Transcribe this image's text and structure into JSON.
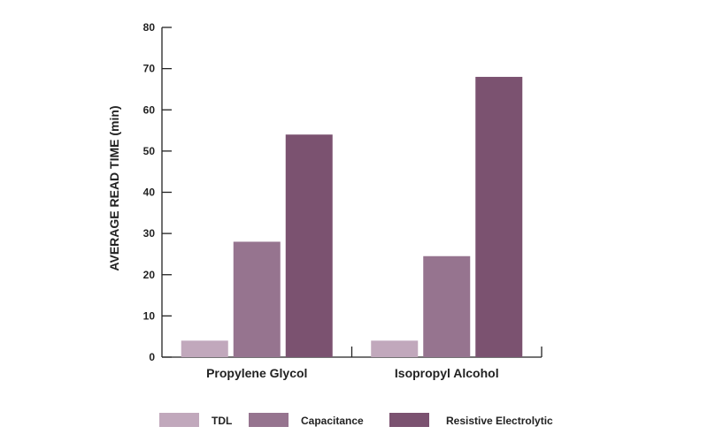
{
  "chart_data": {
    "type": "bar",
    "title": "",
    "xlabel": "",
    "ylabel": "AVERAGE READ TIME (min)",
    "ylim": [
      0,
      80
    ],
    "yticks": [
      0,
      10,
      20,
      30,
      40,
      50,
      60,
      70,
      80
    ],
    "grid": false,
    "legend_position": "bottom",
    "categories": [
      "Propylene Glycol",
      "Isopropyl Alcohol"
    ],
    "series": [
      {
        "name": "TDL",
        "color": "#c1a8bc",
        "values": [
          4,
          4
        ]
      },
      {
        "name": "Capacitance",
        "color": "#96748f",
        "values": [
          28,
          24.5
        ]
      },
      {
        "name": "Resistive Electrolytic",
        "color": "#7b5270",
        "values": [
          54,
          68
        ]
      }
    ]
  }
}
